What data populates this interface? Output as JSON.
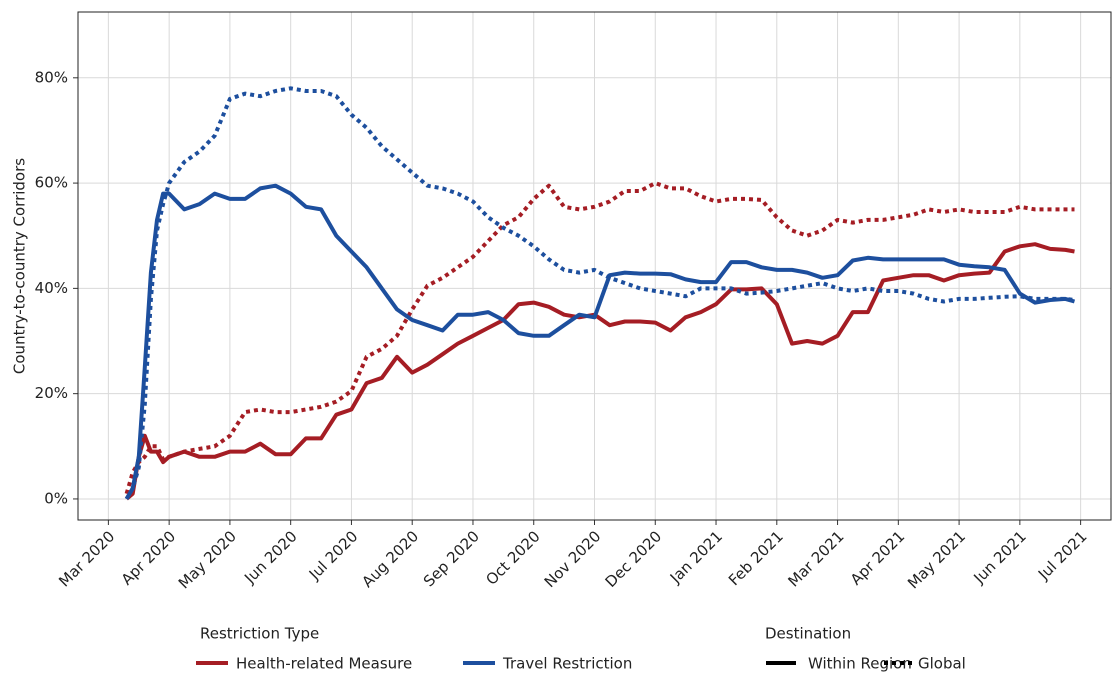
{
  "chart_data": {
    "type": "line",
    "y_label": "Country-to-country Corridors",
    "x": [
      0.3,
      0.4,
      0.5,
      0.6,
      0.7,
      0.8,
      0.9,
      1.0,
      1.25,
      1.5,
      1.75,
      2.0,
      2.25,
      2.5,
      2.75,
      3.0,
      3.25,
      3.5,
      3.75,
      4.0,
      4.25,
      4.5,
      4.75,
      5.0,
      5.25,
      5.5,
      5.75,
      6.0,
      6.25,
      6.5,
      6.75,
      7.0,
      7.25,
      7.5,
      7.75,
      8.0,
      8.25,
      8.5,
      8.75,
      9.0,
      9.25,
      9.5,
      9.75,
      10.0,
      10.25,
      10.5,
      10.75,
      11.0,
      11.25,
      11.5,
      11.75,
      12.0,
      12.25,
      12.5,
      12.75,
      13.0,
      13.25,
      13.5,
      13.75,
      14.0,
      14.25,
      14.5,
      14.75,
      15.0,
      15.25,
      15.5,
      15.75,
      15.9
    ],
    "series": [
      {
        "restriction": "Health-related Measure",
        "destination": "Within Region",
        "values": [
          0,
          1,
          8,
          12,
          9,
          9,
          7,
          8,
          9,
          8,
          8,
          9,
          9,
          10.5,
          8.5,
          8.5,
          11.5,
          11.5,
          16,
          17,
          22,
          23,
          27,
          24,
          25.5,
          27.5,
          29.5,
          31,
          32.5,
          34,
          37,
          37.3,
          36.5,
          35,
          34.5,
          35,
          33,
          33.7,
          33.7,
          33.5,
          32,
          34.5,
          35.5,
          37,
          39.8,
          39.8,
          40,
          37,
          29.5,
          30,
          29.5,
          31,
          35.5,
          35.5,
          41.5,
          42,
          42.5,
          42.5,
          41.5,
          42.5,
          42.8,
          43,
          47,
          48,
          48.4,
          47.5,
          47.3,
          47
        ]
      },
      {
        "restriction": "Health-related Measure",
        "destination": "Global",
        "values": [
          1,
          5,
          7,
          8,
          10,
          10,
          7.5,
          8,
          9,
          9.5,
          10,
          12,
          16.5,
          17,
          16.5,
          16.5,
          17,
          17.5,
          18.5,
          20.5,
          27,
          28.5,
          31,
          36,
          40.5,
          42,
          44,
          46,
          49,
          52,
          53.5,
          57,
          59.5,
          55.5,
          55,
          55.5,
          56.5,
          58.5,
          58.5,
          60,
          59,
          59,
          57.5,
          56.5,
          57,
          57,
          56.8,
          53.5,
          51,
          50,
          51,
          53,
          52.5,
          53,
          53,
          53.5,
          54,
          55,
          54.5,
          55,
          54.5,
          54.5,
          54.5,
          55.5,
          55,
          55,
          55,
          55
        ]
      },
      {
        "restriction": "Travel Restriction",
        "destination": "Within Region",
        "values": [
          0,
          2,
          8,
          25,
          43,
          53,
          58,
          58,
          55,
          56,
          58,
          57,
          57,
          59,
          59.5,
          58,
          55.5,
          55,
          50,
          47,
          44,
          40,
          36,
          34,
          33,
          32,
          35,
          35,
          35.5,
          34,
          31.5,
          31,
          31,
          33,
          35,
          34.5,
          42.5,
          43,
          42.8,
          42.8,
          42.7,
          41.7,
          41.2,
          41.2,
          45,
          45,
          44,
          43.5,
          43.5,
          43,
          42,
          42.5,
          45.3,
          45.8,
          45.5,
          45.5,
          45.5,
          45.5,
          45.5,
          44.5,
          44.2,
          44,
          43.5,
          39,
          37.3,
          37.8,
          38,
          37.5
        ]
      },
      {
        "restriction": "Travel Restriction",
        "destination": "Global",
        "values": [
          0,
          2,
          6,
          18,
          38,
          51,
          56,
          60,
          64,
          66,
          69,
          76,
          77,
          76.5,
          77.5,
          78,
          77.5,
          77.5,
          76.5,
          73,
          70.5,
          67,
          64.5,
          62,
          59.5,
          59,
          58,
          56.5,
          53.5,
          51.5,
          50,
          48,
          45.5,
          43.5,
          43,
          43.5,
          42,
          41,
          40,
          39.5,
          39,
          38.5,
          40,
          40,
          40,
          39,
          39.2,
          39.5,
          40,
          40.5,
          41,
          40,
          39.5,
          40,
          39.5,
          39.5,
          39,
          38,
          37.5,
          38,
          38,
          38.2,
          38.4,
          38.5,
          38,
          38,
          38,
          37.8
        ]
      }
    ],
    "legend": {
      "color": {
        "title": "Restriction Type",
        "entries": [
          {
            "name": "Health-related Measure",
            "color": "#a51d24"
          },
          {
            "name": "Travel Restriction",
            "color": "#1d4f9e"
          }
        ]
      },
      "linetype": {
        "title": "Destination",
        "entries": [
          {
            "name": "Within Region",
            "dash": "solid"
          },
          {
            "name": "Global",
            "dash": "dotted"
          }
        ]
      }
    },
    "xlim": [
      -0.5,
      16.5
    ],
    "xticks": [
      {
        "value": 0,
        "label": "Mar 2020"
      },
      {
        "value": 1,
        "label": "Apr 2020"
      },
      {
        "value": 2,
        "label": "May 2020"
      },
      {
        "value": 3,
        "label": "Jun 2020"
      },
      {
        "value": 4,
        "label": "Jul 2020"
      },
      {
        "value": 5,
        "label": "Aug 2020"
      },
      {
        "value": 6,
        "label": "Sep 2020"
      },
      {
        "value": 7,
        "label": "Oct 2020"
      },
      {
        "value": 8,
        "label": "Nov 2020"
      },
      {
        "value": 9,
        "label": "Dec 2020"
      },
      {
        "value": 10,
        "label": "Jan 2021"
      },
      {
        "value": 11,
        "label": "Feb 2021"
      },
      {
        "value": 12,
        "label": "Mar 2021"
      },
      {
        "value": 13,
        "label": "Apr 2021"
      },
      {
        "value": 14,
        "label": "May 2021"
      },
      {
        "value": 15,
        "label": "Jun 2021"
      },
      {
        "value": 16,
        "label": "Jul 2021"
      }
    ],
    "ylim": [
      -4,
      92.5
    ],
    "yticks": [
      {
        "value": 0,
        "label": "0%"
      },
      {
        "value": 20,
        "label": "20%"
      },
      {
        "value": 40,
        "label": "40%"
      },
      {
        "value": 60,
        "label": "60%"
      },
      {
        "value": 80,
        "label": "80%"
      }
    ],
    "grid": true
  }
}
